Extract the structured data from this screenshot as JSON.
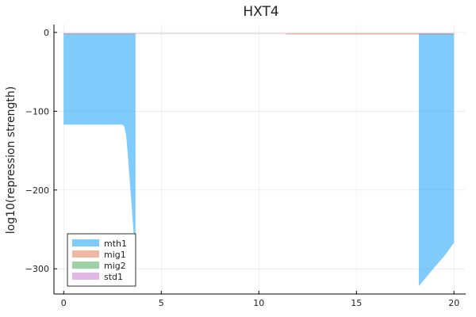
{
  "chart_data": {
    "type": "area",
    "title": "HXT4",
    "xlabel": "",
    "ylabel": "log10(repression strength)",
    "xlim": [
      -0.5,
      20.6
    ],
    "ylim": [
      -332,
      10
    ],
    "xticks": [
      0,
      5,
      10,
      15,
      20
    ],
    "yticks": [
      0,
      -100,
      -200,
      -300
    ],
    "grid": true,
    "legend_position": "bottom-left",
    "series": [
      {
        "name": "mth1",
        "color": "#009AFA",
        "opacity": 0.5,
        "baseline": -1.5,
        "segments": [
          [
            [
              0,
              -117
            ],
            [
              3.0,
              -117
            ],
            [
              3.1,
              -119
            ],
            [
              3.2,
              -130
            ],
            [
              3.3,
              -160
            ],
            [
              3.45,
              -210
            ],
            [
              3.6,
              -260
            ],
            [
              3.68,
              -300
            ]
          ],
          [
            [
              18.2,
              -322
            ],
            [
              18.5,
              -313
            ],
            [
              19.0,
              -298
            ],
            [
              19.5,
              -284
            ],
            [
              20.0,
              -267
            ]
          ]
        ]
      },
      {
        "name": "mig1",
        "color": "#E26F46",
        "opacity": 0.5,
        "baseline": -1.5,
        "segments": [
          [
            [
              0,
              -2.2
            ],
            [
              3.7,
              -2.2
            ]
          ],
          [
            [
              11.4,
              -2.6
            ],
            [
              18.2,
              -2.6
            ]
          ],
          [
            [
              18.2,
              -2.4
            ],
            [
              20.0,
              -2.4
            ]
          ]
        ]
      },
      {
        "name": "mig2",
        "color": "#3EA44E",
        "opacity": 0.5,
        "baseline": -1.5,
        "segments": [
          [
            [
              0,
              -1.2
            ],
            [
              20.0,
              -1.2
            ]
          ]
        ]
      },
      {
        "name": "std1",
        "color": "#C271D2",
        "opacity": 0.5,
        "baseline": -1.5,
        "segments": [
          [
            [
              0,
              -0.8
            ],
            [
              20.0,
              -0.8
            ]
          ]
        ]
      }
    ]
  }
}
